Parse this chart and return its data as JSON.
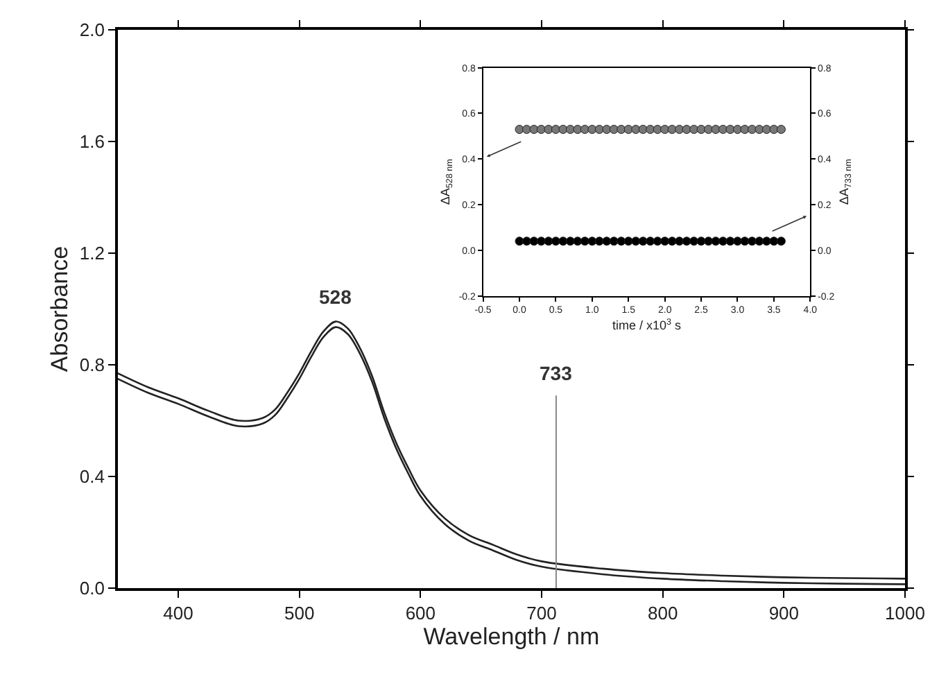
{
  "chart_data": [
    {
      "type": "line",
      "xlabel": "Wavelength / nm",
      "ylabel": "Absorbance",
      "xlim": [
        350,
        1000
      ],
      "xticks": [
        400,
        500,
        600,
        700,
        800,
        900,
        1000
      ],
      "ylim": [
        0,
        2.0
      ],
      "yticks": [
        {
          "value": 0,
          "label": "0.0"
        },
        {
          "value": 0.4,
          "label": "0.4"
        },
        {
          "value": 0.8,
          "label": "0.8"
        },
        {
          "value": 1.2,
          "label": "1.2"
        },
        {
          "value": 1.6,
          "label": "1.6"
        },
        {
          "value": 2,
          "label": "2.0"
        }
      ],
      "marker": "none",
      "line_style": "solid",
      "x": [
        350,
        375,
        400,
        425,
        450,
        470,
        480,
        490,
        500,
        510,
        520,
        530,
        540,
        550,
        560,
        570,
        580,
        590,
        600,
        620,
        640,
        660,
        680,
        700,
        750,
        800,
        850,
        900,
        950,
        1000
      ],
      "series": [
        {
          "color": "#222222",
          "values": [
            0.77,
            0.72,
            0.68,
            0.635,
            0.6,
            0.61,
            0.64,
            0.7,
            0.77,
            0.85,
            0.92,
            0.955,
            0.93,
            0.86,
            0.76,
            0.63,
            0.52,
            0.43,
            0.35,
            0.25,
            0.19,
            0.155,
            0.12,
            0.096,
            0.07,
            0.054,
            0.045,
            0.039,
            0.036,
            0.034
          ]
        },
        {
          "color": "#222222",
          "values": [
            0.75,
            0.7,
            0.66,
            0.615,
            0.58,
            0.59,
            0.62,
            0.68,
            0.75,
            0.83,
            0.9,
            0.935,
            0.91,
            0.84,
            0.74,
            0.61,
            0.5,
            0.41,
            0.33,
            0.23,
            0.17,
            0.135,
            0.1,
            0.077,
            0.05,
            0.034,
            0.025,
            0.019,
            0.016,
            0.014
          ]
        }
      ],
      "ref_lines": [
        {
          "axis": "x",
          "value": 712,
          "color": "#888888"
        }
      ],
      "annotations": [
        "528",
        "733"
      ]
    },
    {
      "type": "scatter",
      "xlabel": "time / x10$^{3}$ s",
      "ylabel": "ΔA$_{528 nm}$",
      "y2label": "ΔA$_{733 nm}$",
      "xlim": [
        -0.5,
        4.0
      ],
      "xticks": [
        {
          "value": -0.5,
          "label": "-0.5"
        },
        {
          "value": 0,
          "label": "0.0"
        },
        {
          "value": 0.5,
          "label": "0.5"
        },
        {
          "value": 1,
          "label": "1.0"
        },
        {
          "value": 1.5,
          "label": "1.5"
        },
        {
          "value": 2,
          "label": "2.0"
        },
        {
          "value": 2.5,
          "label": "2.5"
        },
        {
          "value": 3,
          "label": "3.0"
        },
        {
          "value": 3.5,
          "label": "3.5"
        },
        {
          "value": 4,
          "label": "4.0"
        }
      ],
      "ylim": [
        -0.2,
        0.8
      ],
      "yticks": [
        {
          "value": -0.2,
          "label": "-0.2"
        },
        {
          "value": 0,
          "label": "0.0"
        },
        {
          "value": 0.2,
          "label": "0.2"
        },
        {
          "value": 0.4,
          "label": "0.4"
        },
        {
          "value": 0.6,
          "label": "0.6"
        },
        {
          "value": 0.8,
          "label": "0.8"
        }
      ],
      "y2lim": [
        -0.2,
        0.8
      ],
      "y2ticks": [
        {
          "value": -0.2,
          "label": "-0.2"
        },
        {
          "value": 0,
          "label": "0.0"
        },
        {
          "value": 0.2,
          "label": "0.2"
        },
        {
          "value": 0.4,
          "label": "0.4"
        },
        {
          "value": 0.6,
          "label": "0.6"
        },
        {
          "value": 0.8,
          "label": "0.8"
        }
      ],
      "marker": "circle",
      "x": [
        0,
        0.1,
        0.2,
        0.3,
        0.4,
        0.5,
        0.6,
        0.7,
        0.8,
        0.9,
        1.0,
        1.1,
        1.2,
        1.3,
        1.4,
        1.5,
        1.6,
        1.7,
        1.8,
        1.9,
        2.0,
        2.1,
        2.2,
        2.3,
        2.4,
        2.5,
        2.6,
        2.7,
        2.8,
        2.9,
        3.0,
        3.1,
        3.2,
        3.3,
        3.4,
        3.5,
        3.6
      ],
      "series": [
        {
          "color": "#777777",
          "values": [
            0.53,
            0.53,
            0.53,
            0.53,
            0.53,
            0.53,
            0.53,
            0.53,
            0.53,
            0.53,
            0.53,
            0.53,
            0.53,
            0.53,
            0.53,
            0.53,
            0.53,
            0.53,
            0.53,
            0.53,
            0.53,
            0.53,
            0.53,
            0.53,
            0.53,
            0.53,
            0.53,
            0.53,
            0.53,
            0.53,
            0.53,
            0.53,
            0.53,
            0.53,
            0.53,
            0.53,
            0.53
          ]
        },
        {
          "color": "#000000",
          "axis": "y2",
          "values": [
            0.04,
            0.04,
            0.04,
            0.04,
            0.04,
            0.04,
            0.04,
            0.04,
            0.04,
            0.04,
            0.04,
            0.04,
            0.04,
            0.04,
            0.04,
            0.04,
            0.04,
            0.04,
            0.04,
            0.04,
            0.04,
            0.04,
            0.04,
            0.04,
            0.04,
            0.04,
            0.04,
            0.04,
            0.04,
            0.04,
            0.04,
            0.04,
            0.04,
            0.04,
            0.04,
            0.04,
            0.04
          ]
        }
      ]
    }
  ]
}
